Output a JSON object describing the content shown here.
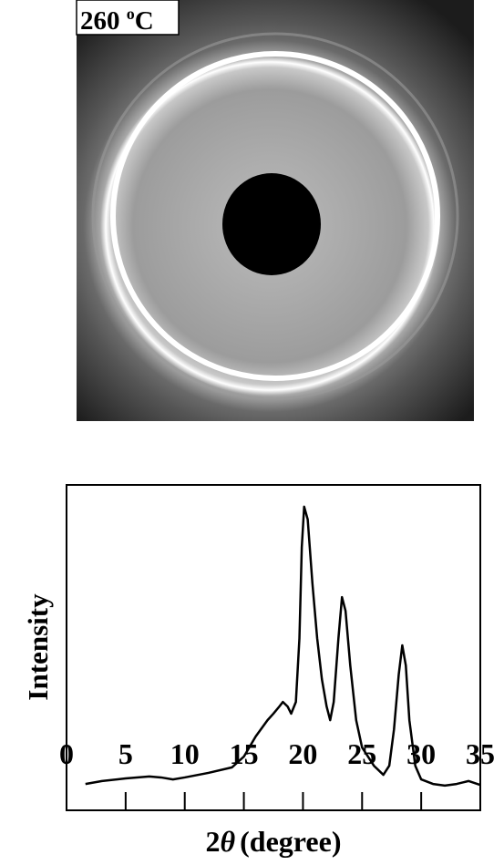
{
  "image_label": {
    "text": "260 ",
    "sup": "o",
    "unit": "C"
  },
  "chart_data": {
    "type": "line",
    "xlabel": {
      "prefix": "2",
      "symbol": "θ",
      "text": "(degree)"
    },
    "ylabel": "Intensity",
    "xlim": [
      0,
      35
    ],
    "xticks": [
      0,
      5,
      10,
      15,
      20,
      25,
      30,
      35
    ],
    "ylim": [
      0,
      100
    ],
    "series": [
      {
        "color": "#000000",
        "x": [
          1.6,
          3,
          5,
          7,
          8,
          9,
          10,
          12,
          14,
          15,
          16,
          17,
          17.5,
          18,
          18.3,
          18.7,
          19,
          19.4,
          19.7,
          19.9,
          20.1,
          20.4,
          20.8,
          21.2,
          21.6,
          22,
          22.3,
          22.6,
          23,
          23.3,
          23.6,
          24,
          24.5,
          25,
          26,
          26.8,
          27.3,
          27.7,
          28.1,
          28.4,
          28.7,
          29,
          29.5,
          30,
          31,
          32,
          33,
          34,
          35
        ],
        "values": [
          8.1,
          9.0,
          9.8,
          10.4,
          10.1,
          9.5,
          10.1,
          11.5,
          13.2,
          16.5,
          22.7,
          27.7,
          29.7,
          31.9,
          33.3,
          31.9,
          29.7,
          33.3,
          52.9,
          80.9,
          93.3,
          89.4,
          69.7,
          52.9,
          40.3,
          31.9,
          27.7,
          33.3,
          52.9,
          65.5,
          61.3,
          44.5,
          27.7,
          19.3,
          13.7,
          10.9,
          13.7,
          24.9,
          41.7,
          50.7,
          44.5,
          27.7,
          13.7,
          9.5,
          8.1,
          7.6,
          8.1,
          9.0,
          7.8
        ]
      }
    ]
  }
}
